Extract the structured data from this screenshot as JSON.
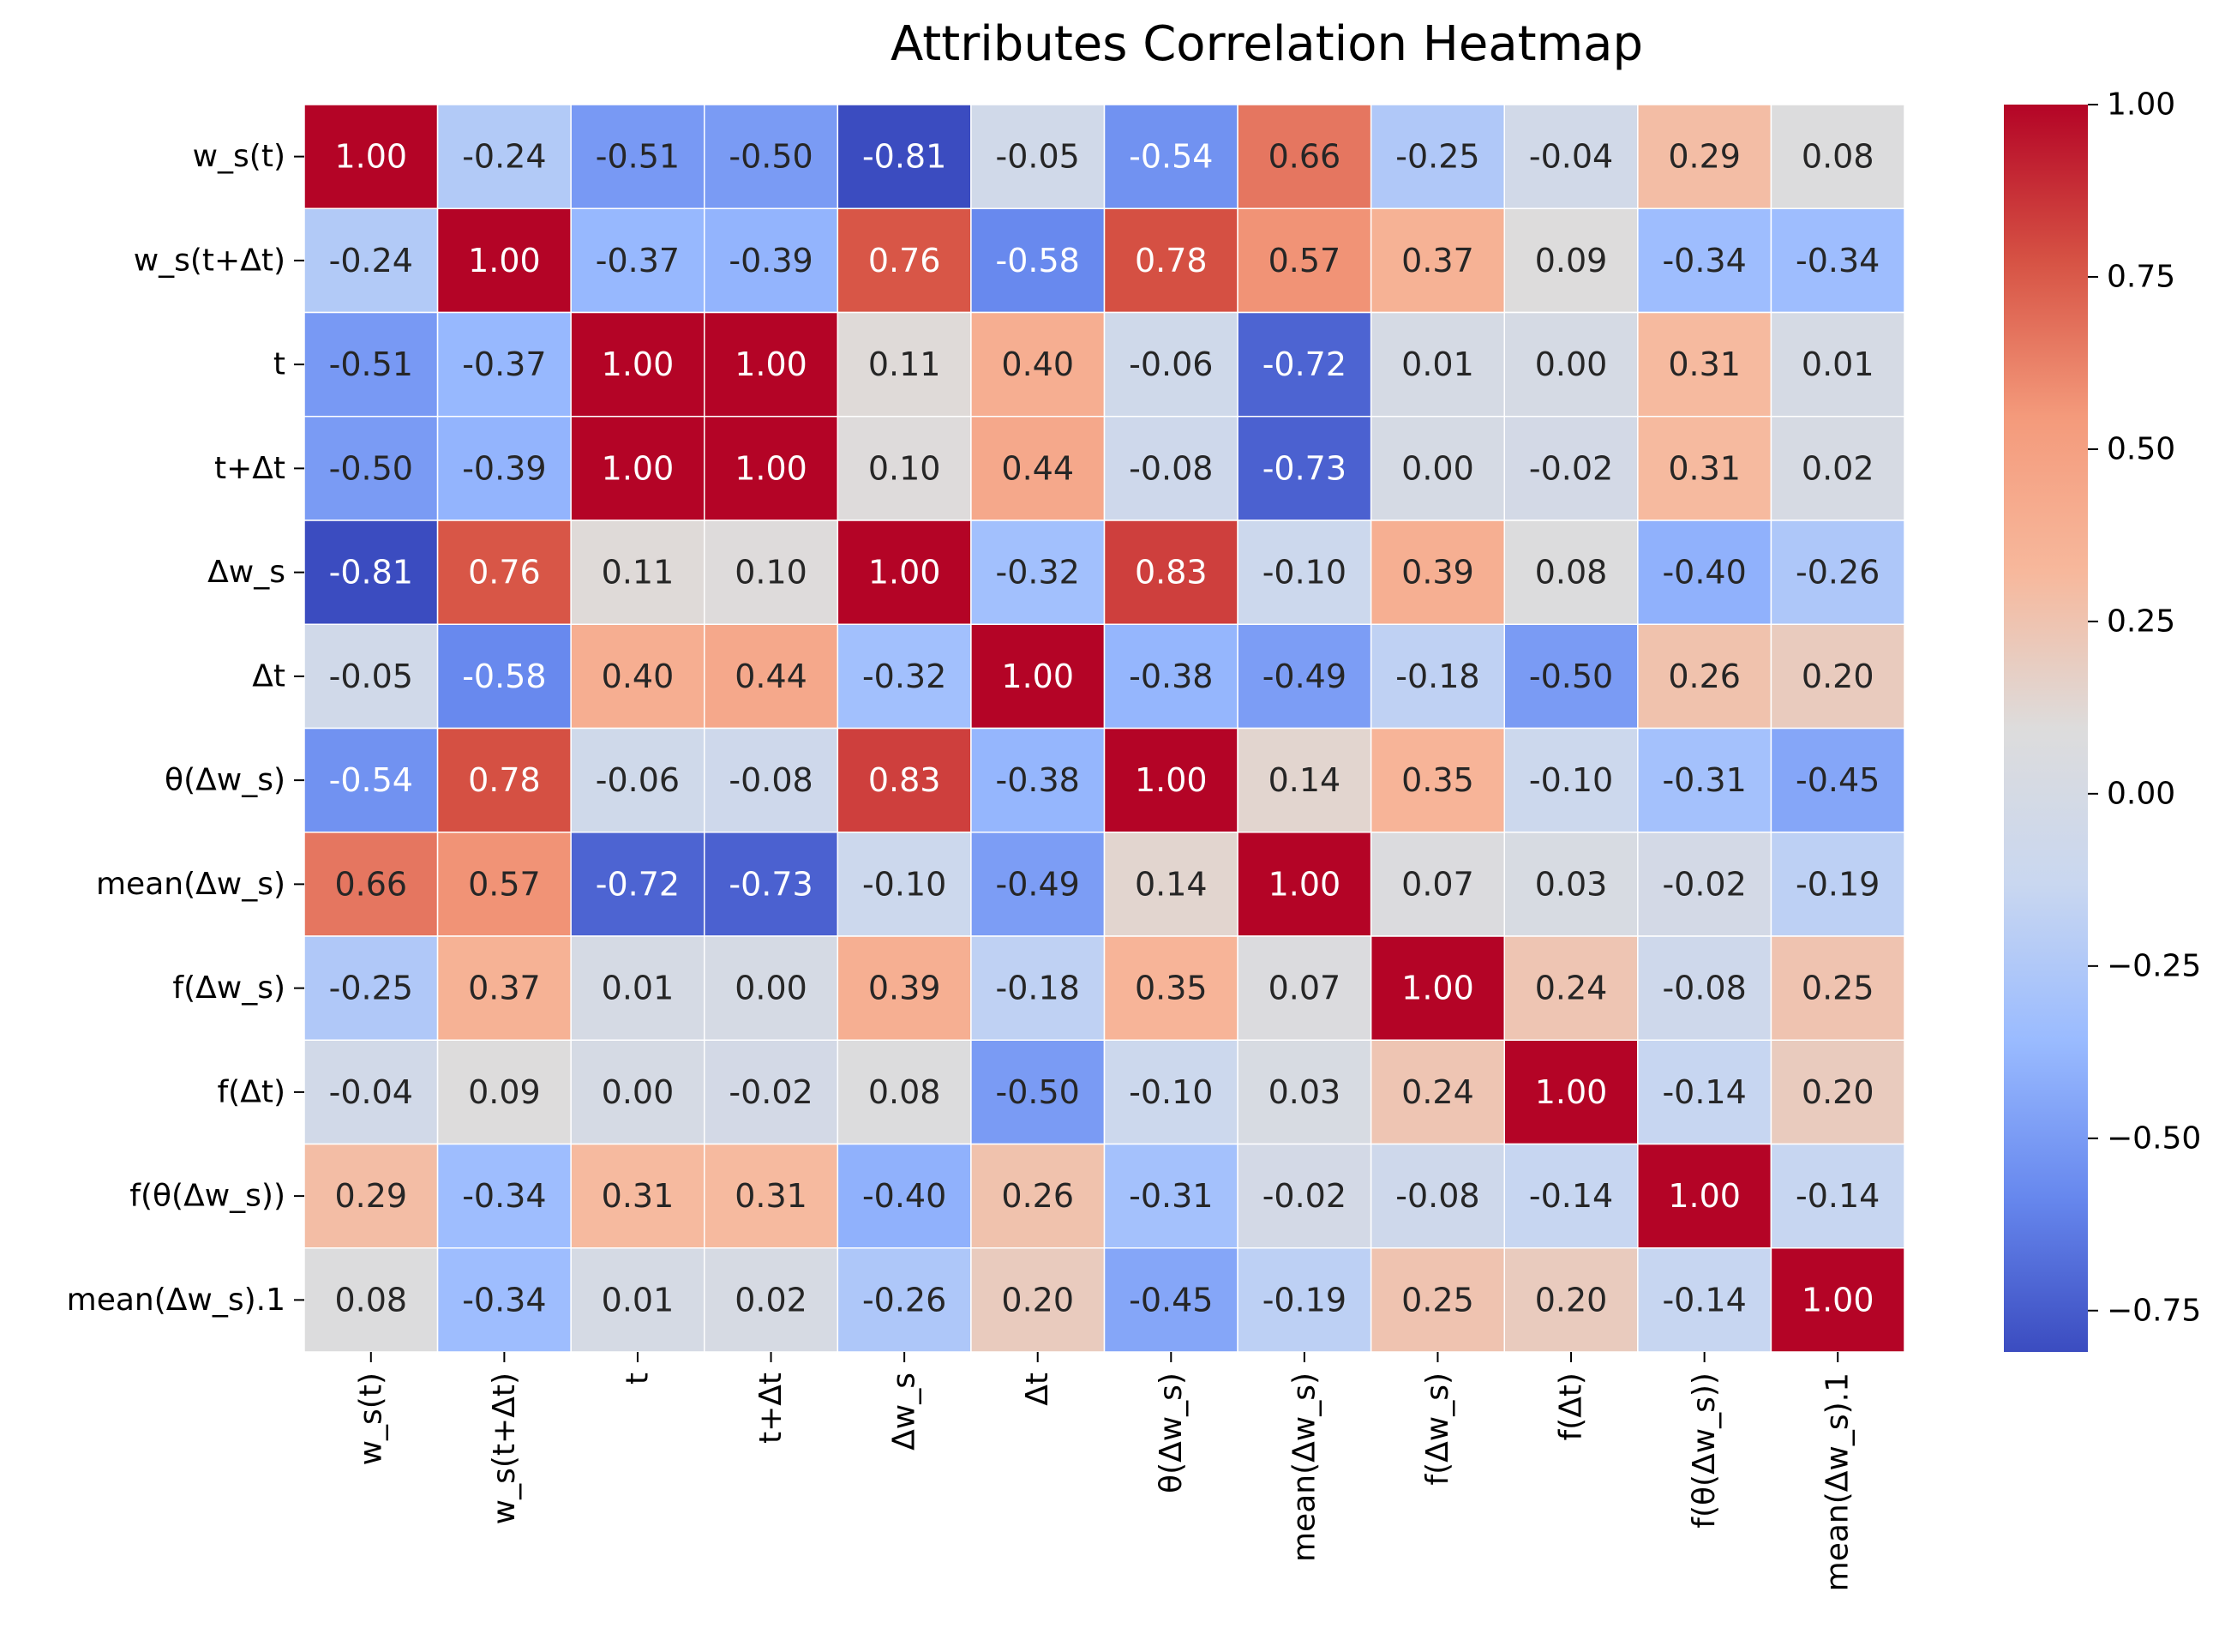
{
  "chart_data": {
    "type": "heatmap",
    "title": "Attributes Correlation Heatmap",
    "rows": [
      "w_s(t)",
      "w_s(t+Δt)",
      "t",
      "t+Δt",
      "Δw_s",
      "Δt",
      "θ(Δw_s)",
      "mean(Δw_s)",
      "f(Δw_s)",
      "f(Δt)",
      "f(θ(Δw_s))",
      "mean(Δw_s).1"
    ],
    "columns": [
      "w_s(t)",
      "w_s(t+Δt)",
      "t",
      "t+Δt",
      "Δw_s",
      "Δt",
      "θ(Δw_s)",
      "mean(Δw_s)",
      "f(Δw_s)",
      "f(Δt)",
      "f(θ(Δw_s))",
      "mean(Δw_s).1"
    ],
    "values": [
      [
        1.0,
        -0.24,
        -0.51,
        -0.5,
        -0.81,
        -0.05,
        -0.54,
        0.66,
        -0.25,
        -0.04,
        0.29,
        0.08
      ],
      [
        -0.24,
        1.0,
        -0.37,
        -0.39,
        0.76,
        -0.58,
        0.78,
        0.57,
        0.37,
        0.09,
        -0.34,
        -0.34
      ],
      [
        -0.51,
        -0.37,
        1.0,
        1.0,
        0.11,
        0.4,
        -0.06,
        -0.72,
        0.01,
        0.0,
        0.31,
        0.01
      ],
      [
        -0.5,
        -0.39,
        1.0,
        1.0,
        0.1,
        0.44,
        -0.08,
        -0.73,
        -0.0,
        -0.02,
        0.31,
        0.02
      ],
      [
        -0.81,
        0.76,
        0.11,
        0.1,
        1.0,
        -0.32,
        0.83,
        -0.1,
        0.39,
        0.08,
        -0.4,
        -0.26
      ],
      [
        -0.05,
        -0.58,
        0.4,
        0.44,
        -0.32,
        1.0,
        -0.38,
        -0.49,
        -0.18,
        -0.5,
        0.26,
        0.2
      ],
      [
        -0.54,
        0.78,
        -0.06,
        -0.08,
        0.83,
        -0.38,
        1.0,
        0.14,
        0.35,
        -0.1,
        -0.31,
        -0.45
      ],
      [
        0.66,
        0.57,
        -0.72,
        -0.73,
        -0.1,
        -0.49,
        0.14,
        1.0,
        0.07,
        0.03,
        -0.02,
        -0.19
      ],
      [
        -0.25,
        0.37,
        0.01,
        -0.0,
        0.39,
        -0.18,
        0.35,
        0.07,
        1.0,
        0.24,
        -0.08,
        0.25
      ],
      [
        -0.04,
        0.09,
        0.0,
        -0.02,
        0.08,
        -0.5,
        -0.1,
        0.03,
        0.24,
        1.0,
        -0.14,
        0.2
      ],
      [
        0.29,
        -0.34,
        0.31,
        0.31,
        -0.4,
        0.26,
        -0.31,
        -0.02,
        -0.08,
        -0.14,
        1.0,
        -0.14
      ],
      [
        0.08,
        -0.34,
        0.01,
        0.02,
        -0.26,
        0.2,
        -0.45,
        -0.19,
        0.25,
        0.2,
        -0.14,
        1.0
      ]
    ],
    "colormap": "coolwarm",
    "colormap_stops": [
      "#3b4cc0",
      "#6788ee",
      "#9abbff",
      "#c9d7f0",
      "#dddcdc",
      "#f7b89c",
      "#f49a7b",
      "#d65244",
      "#b40426"
    ],
    "value_range": [
      -0.81,
      1.0
    ],
    "colorbar_ticks": [
      1.0,
      0.75,
      0.5,
      0.25,
      0.0,
      -0.25,
      -0.5,
      -0.75
    ],
    "colorbar_tick_labels": [
      "1.00",
      "0.75",
      "0.50",
      "0.25",
      "0.00",
      "−0.25",
      "−0.50",
      "−0.75"
    ],
    "annotation_format": "0.00",
    "grid_line_color": "#ffffff",
    "colorbar_position": "right"
  }
}
